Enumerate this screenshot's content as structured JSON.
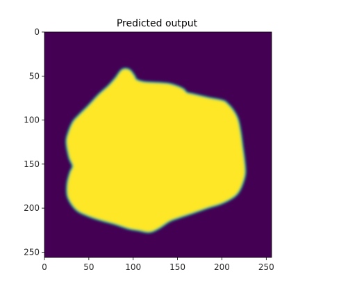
{
  "chart_data": {
    "type": "heatmap",
    "title": "Predicted output",
    "xlabel": "",
    "ylabel": "",
    "xlim": [
      0,
      256
    ],
    "ylim": [
      256,
      0
    ],
    "x_ticks": [
      0,
      50,
      100,
      150,
      200,
      250
    ],
    "y_ticks": [
      0,
      50,
      100,
      150,
      200,
      250
    ],
    "grid": false,
    "legend": "none",
    "colormap": "viridis",
    "colors": {
      "background": "#440154",
      "foreground": "#fde725",
      "edge_mid": "#21918c",
      "edge_inner": "#5ec962"
    },
    "blob_outline": [
      [
        88,
        44
      ],
      [
        95,
        44
      ],
      [
        100,
        50
      ],
      [
        103,
        55
      ],
      [
        112,
        58
      ],
      [
        128,
        59
      ],
      [
        140,
        60
      ],
      [
        150,
        63
      ],
      [
        156,
        66
      ],
      [
        160,
        70
      ],
      [
        168,
        72
      ],
      [
        185,
        76
      ],
      [
        200,
        79
      ],
      [
        205,
        82
      ],
      [
        212,
        90
      ],
      [
        217,
        100
      ],
      [
        220,
        115
      ],
      [
        222,
        130
      ],
      [
        224,
        145
      ],
      [
        225,
        160
      ],
      [
        222,
        172
      ],
      [
        217,
        182
      ],
      [
        210,
        188
      ],
      [
        198,
        194
      ],
      [
        185,
        198
      ],
      [
        168,
        204
      ],
      [
        150,
        210
      ],
      [
        140,
        214
      ],
      [
        128,
        222
      ],
      [
        118,
        226
      ],
      [
        106,
        224
      ],
      [
        95,
        222
      ],
      [
        80,
        217
      ],
      [
        62,
        212
      ],
      [
        48,
        207
      ],
      [
        38,
        202
      ],
      [
        31,
        194
      ],
      [
        27,
        185
      ],
      [
        27,
        172
      ],
      [
        30,
        160
      ],
      [
        33,
        152
      ],
      [
        29,
        142
      ],
      [
        26,
        125
      ],
      [
        28,
        115
      ],
      [
        33,
        103
      ],
      [
        40,
        95
      ],
      [
        50,
        85
      ],
      [
        62,
        72
      ],
      [
        73,
        62
      ],
      [
        81,
        53
      ]
    ]
  }
}
